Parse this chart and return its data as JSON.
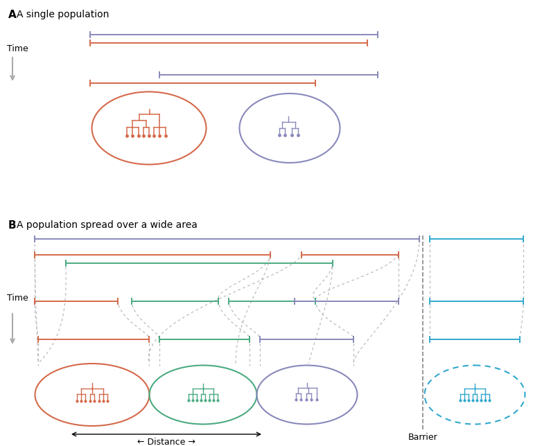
{
  "bg_color": "#ffffff",
  "colors": {
    "orange": "#d4694a",
    "purple": "#8888bb",
    "green": "#4aaa80",
    "blue": "#30a8cc",
    "gray": "#aaaaaa",
    "dark_gray": "#888888"
  },
  "section_A": {
    "title_letter": "A",
    "title_text": "A single population"
  },
  "section_B": {
    "title_letter": "B",
    "title_text": "A population spread over a wide area",
    "barrier_label": "Barrier",
    "distance_label": "← Distance →"
  }
}
